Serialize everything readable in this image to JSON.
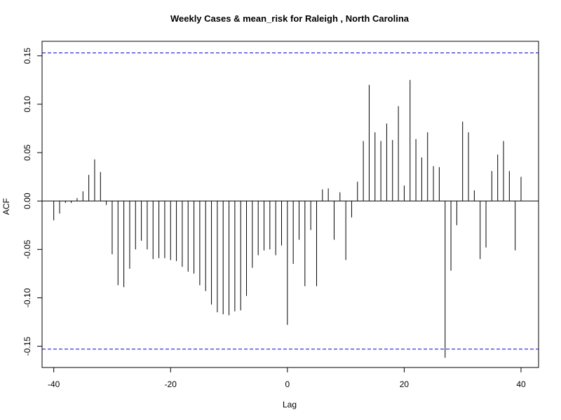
{
  "chart_data": {
    "type": "bar",
    "title": "Weekly Cases & mean_risk for Raleigh , North Carolina",
    "xlabel": "Lag",
    "ylabel": "ACF",
    "xlim": [
      -42,
      43
    ],
    "ylim": [
      -0.172,
      0.165
    ],
    "x_ticks": [
      -40,
      -20,
      0,
      20,
      40
    ],
    "y_ticks": [
      -0.15,
      -0.1,
      -0.05,
      0.0,
      0.05,
      0.1,
      0.15
    ],
    "y_tick_labels": [
      "-0.15",
      "-0.10",
      "-0.05",
      "0.00",
      "0.05",
      "0.10",
      "0.15"
    ],
    "confidence_bound": 0.153,
    "lags": [
      -40,
      -39,
      -38,
      -37,
      -36,
      -35,
      -34,
      -33,
      -32,
      -31,
      -30,
      -29,
      -28,
      -27,
      -26,
      -25,
      -24,
      -23,
      -22,
      -21,
      -20,
      -19,
      -18,
      -17,
      -16,
      -15,
      -14,
      -13,
      -12,
      -11,
      -10,
      -9,
      -8,
      -7,
      -6,
      -5,
      -4,
      -3,
      -2,
      -1,
      0,
      1,
      2,
      3,
      4,
      5,
      6,
      7,
      8,
      9,
      10,
      11,
      12,
      13,
      14,
      15,
      16,
      17,
      18,
      19,
      20,
      21,
      22,
      23,
      24,
      25,
      26,
      27,
      28,
      29,
      30,
      31,
      32,
      33,
      34,
      35,
      36,
      37,
      38,
      39,
      40
    ],
    "values": [
      -0.02,
      -0.013,
      -0.002,
      -0.002,
      0.003,
      0.01,
      0.027,
      0.043,
      0.03,
      -0.004,
      -0.055,
      -0.087,
      -0.089,
      -0.07,
      -0.05,
      -0.041,
      -0.05,
      -0.06,
      -0.059,
      -0.059,
      -0.061,
      -0.062,
      -0.068,
      -0.073,
      -0.075,
      -0.087,
      -0.093,
      -0.107,
      -0.115,
      -0.117,
      -0.118,
      -0.114,
      -0.113,
      -0.098,
      -0.069,
      -0.056,
      -0.051,
      -0.05,
      -0.056,
      -0.046,
      -0.128,
      -0.065,
      -0.04,
      -0.088,
      -0.03,
      -0.088,
      0.012,
      0.013,
      -0.04,
      0.009,
      -0.061,
      -0.017,
      0.02,
      0.062,
      0.12,
      0.071,
      0.062,
      0.08,
      0.063,
      0.098,
      0.016,
      0.125,
      0.064,
      0.045,
      0.071,
      0.036,
      0.035,
      -0.162,
      -0.072,
      -0.025,
      0.082,
      0.071,
      0.011,
      -0.06,
      -0.048,
      0.031,
      0.048,
      0.062,
      0.031,
      -0.051,
      0.025
    ]
  }
}
